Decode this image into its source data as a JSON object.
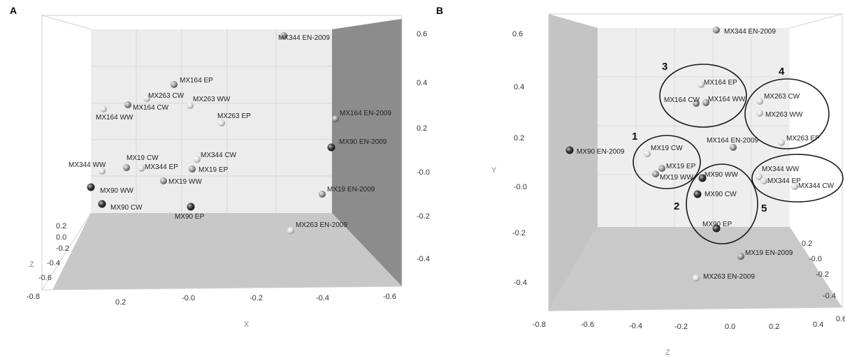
{
  "colors": {
    "light_point": "#d8d8d8",
    "mid_point": "#9a9a9a",
    "dark_point": "#3c3c3c",
    "back_wall": "#eaeaea",
    "side_wall": "#8f8f8f",
    "floor": "#c9c9c9",
    "left_wall": "#c4c4c4"
  },
  "chart_data": [
    {
      "panel": "A",
      "type": "scatter",
      "xlabel": "X",
      "ylabel": "",
      "zlabel": "Z",
      "x_ticks": [
        "0.2",
        "-0.0",
        "-0.2",
        "-0.4",
        "-0.6"
      ],
      "x_end_tick": "-0.8",
      "y_ticks": [
        "0.6",
        "0.4",
        "0.2",
        "-0.0",
        "-0.2",
        "-0.4"
      ],
      "z_ticks": [
        "0.2",
        "0.0",
        "-0.2",
        "-0.4",
        "-0.6"
      ],
      "points": [
        {
          "label": "MX344 EN-2009",
          "shade": "mid"
        },
        {
          "label": "MX164 EP",
          "shade": "mid"
        },
        {
          "label": "MX263 CW",
          "shade": "light"
        },
        {
          "label": "MX263 WW",
          "shade": "light"
        },
        {
          "label": "MX164 CW",
          "shade": "mid"
        },
        {
          "label": "MX164 WW",
          "shade": "light"
        },
        {
          "label": "MX263 EP",
          "shade": "light"
        },
        {
          "label": "MX164 EN-2009",
          "shade": "mid"
        },
        {
          "label": "MX90 EN-2009",
          "shade": "dark"
        },
        {
          "label": "MX19 CW",
          "shade": "mid"
        },
        {
          "label": "MX344 CW",
          "shade": "light"
        },
        {
          "label": "MX344 WW",
          "shade": "light"
        },
        {
          "label": "MX344 EP",
          "shade": "light"
        },
        {
          "label": "MX19 EP",
          "shade": "mid"
        },
        {
          "label": "MX90 WW",
          "shade": "dark"
        },
        {
          "label": "MX19 WW",
          "shade": "mid"
        },
        {
          "label": "MX19 EN-2009",
          "shade": "mid"
        },
        {
          "label": "MX90 CW",
          "shade": "dark"
        },
        {
          "label": "MX90 EP",
          "shade": "dark"
        },
        {
          "label": "MX263 EN-2009",
          "shade": "light"
        }
      ]
    },
    {
      "panel": "B",
      "type": "scatter",
      "xlabel": "Z",
      "ylabel": "Y",
      "x_ticks": [
        "-0.8",
        "-0.6",
        "-0.4",
        "-0.2",
        "0.0",
        "0.2",
        "0.4",
        "0.6"
      ],
      "y_ticks": [
        "0.6",
        "0.4",
        "0.2",
        "-0.0",
        "-0.2",
        "-0.4"
      ],
      "depth_ticks": [
        "0.2",
        "-0.0",
        "-0.2",
        "-0.4",
        "0.0"
      ],
      "cluster_labels": [
        "1",
        "2",
        "3",
        "4",
        "5"
      ],
      "points": [
        {
          "label": "MX344 EN-2009",
          "shade": "mid"
        },
        {
          "label": "MX164 EP",
          "shade": "light"
        },
        {
          "label": "MX164 CW",
          "shade": "mid"
        },
        {
          "label": "MX164 WW",
          "shade": "mid"
        },
        {
          "label": "MX263 CW",
          "shade": "light"
        },
        {
          "label": "MX263 WW",
          "shade": "light"
        },
        {
          "label": "MX263 EP",
          "shade": "light"
        },
        {
          "label": "MX90 EN-2009",
          "shade": "dark"
        },
        {
          "label": "MX164 EN-2009",
          "shade": "mid"
        },
        {
          "label": "MX19 CW",
          "shade": "light"
        },
        {
          "label": "MX19 EP",
          "shade": "mid"
        },
        {
          "label": "MX19 WW",
          "shade": "mid"
        },
        {
          "label": "MX90 WW",
          "shade": "dark"
        },
        {
          "label": "MX90 CW",
          "shade": "dark"
        },
        {
          "label": "MX90 EP",
          "shade": "dark"
        },
        {
          "label": "MX344 WW",
          "shade": "light"
        },
        {
          "label": "MX344 EP",
          "shade": "light"
        },
        {
          "label": "MX344 CW",
          "shade": "light"
        },
        {
          "label": "MX19 EN-2009",
          "shade": "mid"
        },
        {
          "label": "MX263 EN-2009",
          "shade": "light"
        }
      ]
    }
  ]
}
